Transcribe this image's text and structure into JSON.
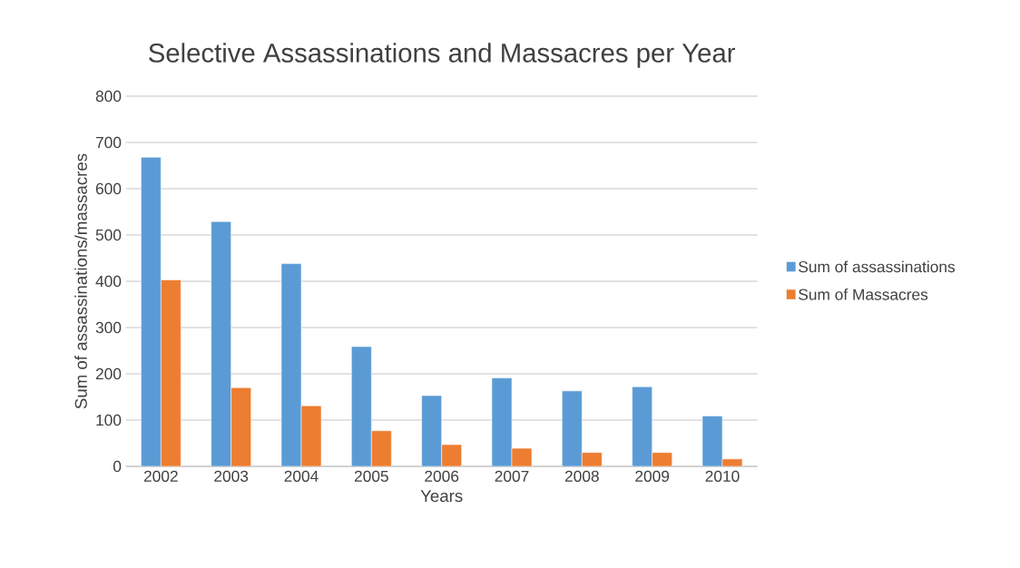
{
  "chart_data": {
    "type": "bar",
    "title": "Selective Assassinations and Massacres per Year",
    "xlabel": "Years",
    "ylabel": "Sum of assassinations/massacres",
    "categories": [
      "2002",
      "2003",
      "2004",
      "2005",
      "2006",
      "2007",
      "2008",
      "2009",
      "2010"
    ],
    "series": [
      {
        "name": "Sum of assassinations",
        "color": "#5b9bd5",
        "values": [
          668,
          529,
          438,
          259,
          153,
          191,
          163,
          172,
          109
        ]
      },
      {
        "name": "Sum of Massacres",
        "color": "#ed7d31",
        "values": [
          403,
          170,
          131,
          77,
          47,
          39,
          30,
          30,
          16
        ]
      }
    ],
    "ylim": [
      0,
      800
    ],
    "yticks": [
      0,
      100,
      200,
      300,
      400,
      500,
      600,
      700,
      800
    ],
    "grid": "y",
    "legend": "right"
  }
}
